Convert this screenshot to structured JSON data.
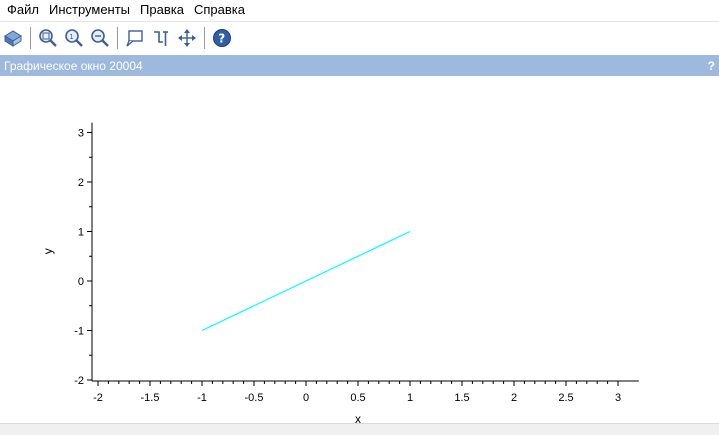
{
  "menu": {
    "items": [
      {
        "label": "Файл"
      },
      {
        "label": "Инструменты"
      },
      {
        "label": "Правка"
      },
      {
        "label": "Справка"
      }
    ]
  },
  "toolbar": {
    "buttons": [
      {
        "icon": "rotate-icon"
      },
      {
        "icon": "zoom-in-icon"
      },
      {
        "icon": "zoom-reset-icon"
      },
      {
        "icon": "zoom-out-icon"
      },
      {
        "icon": "datatip-icon"
      },
      {
        "icon": "datatip-manager-icon"
      },
      {
        "icon": "pan-icon"
      },
      {
        "icon": "help-icon"
      }
    ]
  },
  "window": {
    "title": "Графическое окно 20004",
    "help_mark": "?"
  },
  "colors": {
    "titlebar": "#9db9de",
    "line": "#00ffff"
  },
  "chart_data": {
    "type": "line",
    "xlabel": "x",
    "ylabel": "y",
    "xlim": [
      -2.2,
      3.2
    ],
    "ylim": [
      -2.1,
      3.2
    ],
    "xticks": [
      "-2",
      "-1.5",
      "-1",
      "-0.5",
      "0",
      "0.5",
      "1",
      "1.5",
      "2",
      "2.5",
      "3"
    ],
    "yticks": [
      "-2",
      "-1",
      "0",
      "1",
      "2",
      "3"
    ],
    "series": [
      {
        "x": [
          -1,
          1
        ],
        "y": [
          -1,
          1
        ],
        "color": "#00ffff"
      }
    ],
    "grid": false
  }
}
